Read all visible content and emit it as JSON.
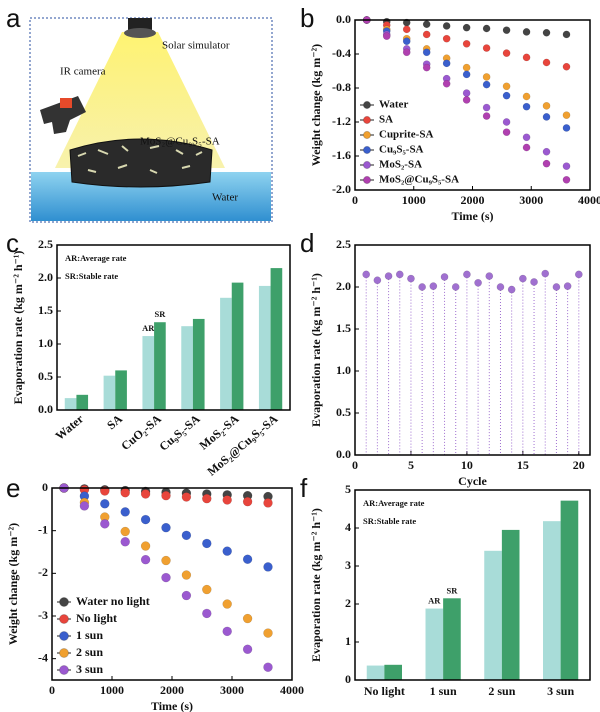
{
  "illustration": {
    "panel_label": "a",
    "labels": [
      "Solar simulator",
      "IR camera",
      "MoS₂@Cu₉S₅-SA",
      "Water"
    ]
  },
  "chart_data": [
    {
      "type": "scatter",
      "panel_label": "b",
      "x_label": "Time (s)",
      "y_label": "Weight change (kg m⁻²)",
      "x": [
        200,
        540,
        880,
        1220,
        1560,
        1900,
        2240,
        2580,
        2920,
        3260,
        3600
      ],
      "series": [
        {
          "name": "Water",
          "color": "#444444",
          "values": [
            0,
            -0.02,
            -0.03,
            -0.05,
            -0.07,
            -0.09,
            -0.1,
            -0.12,
            -0.14,
            -0.15,
            -0.17
          ]
        },
        {
          "name": "SA",
          "color": "#e8453c",
          "values": [
            0,
            -0.06,
            -0.11,
            -0.17,
            -0.22,
            -0.28,
            -0.33,
            -0.39,
            -0.44,
            -0.5,
            -0.55
          ]
        },
        {
          "name": "Cuprite-SA",
          "color": "#f0a030",
          "values": [
            0,
            -0.11,
            -0.22,
            -0.34,
            -0.45,
            -0.56,
            -0.67,
            -0.78,
            -0.9,
            -1.01,
            -1.12
          ]
        },
        {
          "name": "Cu₉S₅-SA",
          "color": "#3a5fcd",
          "values": [
            0,
            -0.13,
            -0.25,
            -0.38,
            -0.51,
            -0.64,
            -0.76,
            -0.89,
            -1.02,
            -1.14,
            -1.27
          ]
        },
        {
          "name": "MoS₂-SA",
          "color": "#9b59d0",
          "values": [
            0,
            -0.17,
            -0.34,
            -0.52,
            -0.69,
            -0.86,
            -1.03,
            -1.2,
            -1.38,
            -1.55,
            -1.72
          ]
        },
        {
          "name": "MoS₂@Cu₉S₅-SA",
          "color": "#b040b0",
          "values": [
            0,
            -0.19,
            -0.38,
            -0.56,
            -0.75,
            -0.94,
            -1.13,
            -1.32,
            -1.5,
            -1.69,
            -1.88
          ]
        }
      ],
      "xlim": [
        0,
        4000
      ],
      "xticks": [
        0,
        1000,
        2000,
        3000,
        4000
      ],
      "ylim": [
        -2.0,
        0.0
      ],
      "yticks": [
        {
          "value": 0,
          "label": "0.0"
        },
        -0.4,
        -0.8,
        -1.2,
        -1.6,
        {
          "value": -2,
          "label": "-2.0"
        }
      ],
      "legend": "lower left"
    },
    {
      "type": "bar",
      "panel_label": "c",
      "y_label": "Evaporation rate (kg m⁻² h⁻¹)",
      "annotations": [
        "AR:Average rate",
        "SR:Stable rate"
      ],
      "categories": [
        "Water",
        "SA",
        "CuO₂-SA",
        "Cu₉S₅-SA",
        "MoS₂-SA",
        "MoS₂@Cu₉S₅-SA"
      ],
      "series": [
        {
          "name": "AR",
          "color": "#a8dcd8",
          "values": [
            0.18,
            0.52,
            1.12,
            1.27,
            1.7,
            1.88
          ]
        },
        {
          "name": "SR",
          "color": "#3ea06a",
          "values": [
            0.23,
            0.6,
            1.33,
            1.38,
            1.93,
            2.15
          ]
        }
      ],
      "ylim": [
        0,
        2.5
      ],
      "yticks": [
        {
          "value": 0,
          "label": "0.0"
        },
        0.5,
        {
          "value": 1,
          "label": "1.0"
        },
        1.5,
        {
          "value": 2,
          "label": "2.0"
        },
        2.5
      ]
    },
    {
      "type": "scatter",
      "panel_label": "d",
      "x_label": "Cycle",
      "y_label": "Evaporation rate (kg m⁻² h⁻¹)",
      "x": [
        1,
        2,
        3,
        4,
        5,
        6,
        7,
        8,
        9,
        10,
        11,
        12,
        13,
        14,
        15,
        16,
        17,
        18,
        19,
        20
      ],
      "series": [
        {
          "color": "#a070d0",
          "values": [
            2.15,
            2.08,
            2.13,
            2.15,
            2.1,
            2.0,
            2.01,
            2.12,
            2.0,
            2.15,
            2.05,
            2.13,
            2.0,
            1.97,
            2.1,
            2.06,
            2.16,
            2.0,
            2.01,
            2.15
          ]
        }
      ],
      "drop_lines": true,
      "xlim": [
        0,
        21
      ],
      "xticks": [
        0,
        5,
        10,
        15,
        20
      ],
      "ylim": [
        0,
        2.5
      ],
      "yticks": [
        {
          "value": 0,
          "label": "0.0"
        },
        0.5,
        {
          "value": 1,
          "label": "1.0"
        },
        1.5,
        {
          "value": 2,
          "label": "2.0"
        },
        2.5
      ]
    },
    {
      "type": "scatter",
      "panel_label": "e",
      "x_label": "Time (s)",
      "y_label": "Weight change (kg m⁻²)",
      "x": [
        200,
        540,
        880,
        1220,
        1560,
        1900,
        2240,
        2580,
        2920,
        3260,
        3600
      ],
      "series": [
        {
          "name": "Water no light",
          "color": "#444444",
          "values": [
            0,
            -0.02,
            -0.04,
            -0.06,
            -0.08,
            -0.1,
            -0.12,
            -0.14,
            -0.16,
            -0.18,
            -0.2
          ]
        },
        {
          "name": "No light",
          "color": "#e8453c",
          "values": [
            0,
            -0.04,
            -0.07,
            -0.11,
            -0.14,
            -0.18,
            -0.21,
            -0.25,
            -0.28,
            -0.32,
            -0.35
          ]
        },
        {
          "name": "1 sun",
          "color": "#3a5fcd",
          "values": [
            0,
            -0.19,
            -0.37,
            -0.56,
            -0.74,
            -0.93,
            -1.11,
            -1.3,
            -1.48,
            -1.67,
            -1.85
          ]
        },
        {
          "name": "2 sun",
          "color": "#f0a030",
          "values": [
            0,
            -0.34,
            -0.68,
            -1.02,
            -1.36,
            -1.7,
            -2.04,
            -2.38,
            -2.72,
            -3.06,
            -3.4
          ]
        },
        {
          "name": "3 sun",
          "color": "#9b59d0",
          "values": [
            0,
            -0.42,
            -0.84,
            -1.26,
            -1.68,
            -2.1,
            -2.52,
            -2.94,
            -3.36,
            -3.78,
            -4.2
          ]
        }
      ],
      "xlim": [
        0,
        4000
      ],
      "xticks": [
        0,
        1000,
        2000,
        3000,
        4000
      ],
      "ylim": [
        -4.5,
        0
      ],
      "yticks": [
        0,
        -1,
        -2,
        -3,
        -4
      ],
      "legend": "lower left"
    },
    {
      "type": "bar",
      "panel_label": "f",
      "y_label": "Evaporation rate (kg m⁻² h⁻¹)",
      "annotations": [
        "AR:Average rate",
        "SR:Stable rate"
      ],
      "categories": [
        "No light",
        "1 sun",
        "2 sun",
        "3 sun"
      ],
      "series": [
        {
          "name": "AR",
          "color": "#a8dcd8",
          "values": [
            0.38,
            1.88,
            3.4,
            4.18
          ]
        },
        {
          "name": "SR",
          "color": "#3ea06a",
          "values": [
            0.4,
            2.15,
            3.95,
            4.72
          ]
        }
      ],
      "ylim": [
        0,
        5
      ],
      "yticks": [
        0,
        1,
        2,
        3,
        4,
        5
      ]
    }
  ]
}
